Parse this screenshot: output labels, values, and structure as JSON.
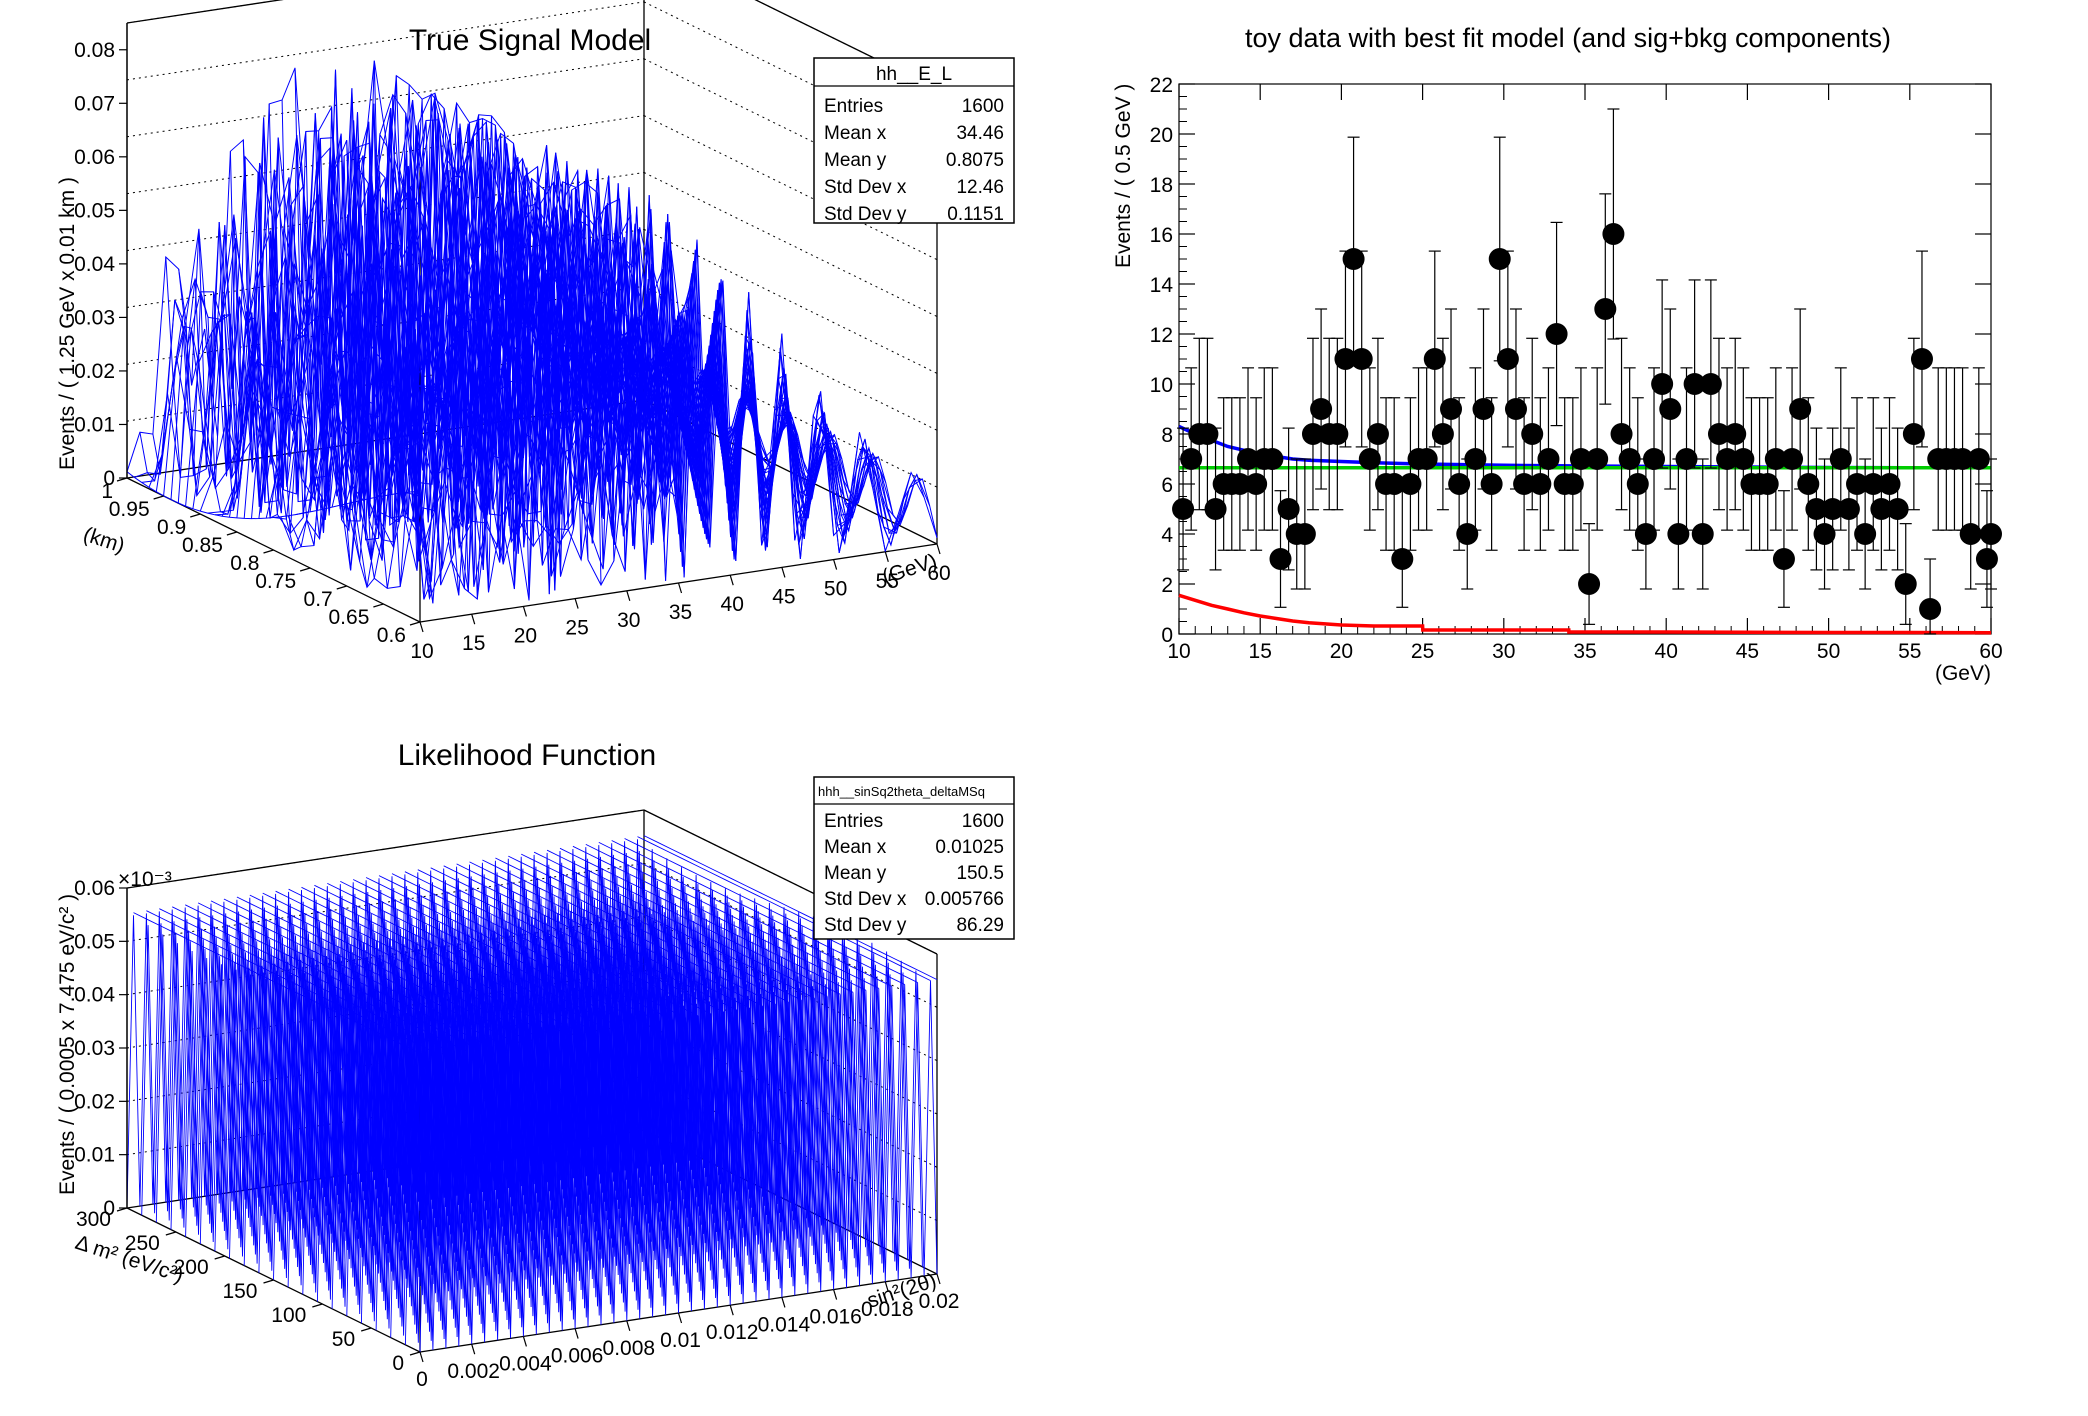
{
  "colors": {
    "mesh": "#0000ff",
    "fit_total": "#0000ff",
    "fit_bkg": "#00cc00",
    "fit_sig": "#ff0000",
    "points": "#000000"
  },
  "chart_data": [
    {
      "id": "true_signal",
      "type": "surface",
      "title": "True Signal Model",
      "xlabel": "(GeV)",
      "ylabel": "(km)",
      "zlabel": "Events / ( 1.25 GeV x 0.01 km )",
      "xlim": [
        10,
        60
      ],
      "ylim": [
        0.6,
        1.0
      ],
      "zlim": [
        0,
        0.085
      ],
      "x_ticks": [
        "10",
        "15",
        "20",
        "25",
        "30",
        "35",
        "40",
        "45",
        "50",
        "55",
        "60"
      ],
      "y_ticks": [
        "0.6",
        "0.65",
        "0.7",
        "0.75",
        "0.8",
        "0.85",
        "0.9",
        "0.95",
        "1"
      ],
      "z_ticks": [
        "0",
        "0.01",
        "0.02",
        "0.03",
        "0.04",
        "0.05",
        "0.06",
        "0.07",
        "0.08"
      ],
      "stats": {
        "name": "hh__E_L",
        "rows": [
          [
            "Entries",
            "1600"
          ],
          [
            "Mean x",
            "34.46"
          ],
          [
            "Mean y",
            "0.8075"
          ],
          [
            "Std Dev x",
            "12.46"
          ],
          [
            "Std Dev y",
            "0.1151"
          ]
        ]
      }
    },
    {
      "id": "toy_fit",
      "type": "scatter",
      "title": "toy data with best fit model (and sig+bkg components)",
      "xlabel": "(GeV)",
      "ylabel": "Events / ( 0.5 GeV )",
      "xlim": [
        10,
        60
      ],
      "ylim": [
        0,
        22
      ],
      "x_ticks": [
        "10",
        "15",
        "20",
        "25",
        "30",
        "35",
        "40",
        "45",
        "50",
        "55",
        "60"
      ],
      "y_ticks": [
        "0",
        "2",
        "4",
        "6",
        "8",
        "10",
        "12",
        "14",
        "16",
        "18",
        "20",
        "22"
      ],
      "points": [
        [
          10.25,
          5
        ],
        [
          10.75,
          7
        ],
        [
          11.25,
          8
        ],
        [
          11.75,
          8
        ],
        [
          12.25,
          5
        ],
        [
          12.75,
          6
        ],
        [
          13.25,
          6
        ],
        [
          13.75,
          6
        ],
        [
          14.25,
          7
        ],
        [
          14.75,
          6
        ],
        [
          15.25,
          7
        ],
        [
          15.75,
          7
        ],
        [
          16.25,
          3
        ],
        [
          16.75,
          5
        ],
        [
          17.25,
          4
        ],
        [
          17.75,
          4
        ],
        [
          18.25,
          8
        ],
        [
          18.75,
          9
        ],
        [
          19.25,
          8
        ],
        [
          19.75,
          8
        ],
        [
          20.25,
          11
        ],
        [
          20.75,
          15
        ],
        [
          21.25,
          11
        ],
        [
          21.75,
          7
        ],
        [
          22.25,
          8
        ],
        [
          22.75,
          6
        ],
        [
          23.25,
          6
        ],
        [
          23.75,
          3
        ],
        [
          24.25,
          6
        ],
        [
          24.75,
          7
        ],
        [
          25.25,
          7
        ],
        [
          25.75,
          11
        ],
        [
          26.25,
          8
        ],
        [
          26.75,
          9
        ],
        [
          27.25,
          6
        ],
        [
          27.75,
          4
        ],
        [
          28.25,
          7
        ],
        [
          28.75,
          9
        ],
        [
          29.25,
          6
        ],
        [
          29.75,
          15
        ],
        [
          30.25,
          11
        ],
        [
          30.75,
          9
        ],
        [
          31.25,
          6
        ],
        [
          31.75,
          8
        ],
        [
          32.25,
          6
        ],
        [
          32.75,
          7
        ],
        [
          33.25,
          12
        ],
        [
          33.75,
          6
        ],
        [
          34.25,
          6
        ],
        [
          34.75,
          7
        ],
        [
          35.25,
          2
        ],
        [
          35.75,
          7
        ],
        [
          36.25,
          13
        ],
        [
          36.75,
          16
        ],
        [
          37.25,
          8
        ],
        [
          37.75,
          7
        ],
        [
          38.25,
          6
        ],
        [
          38.75,
          4
        ],
        [
          39.25,
          7
        ],
        [
          39.75,
          10
        ],
        [
          40.25,
          9
        ],
        [
          40.75,
          4
        ],
        [
          41.25,
          7
        ],
        [
          41.75,
          10
        ],
        [
          42.25,
          4
        ],
        [
          42.75,
          10
        ],
        [
          43.25,
          8
        ],
        [
          43.75,
          7
        ],
        [
          44.25,
          8
        ],
        [
          44.75,
          7
        ],
        [
          45.25,
          6
        ],
        [
          45.75,
          6
        ],
        [
          46.25,
          6
        ],
        [
          46.75,
          7
        ],
        [
          47.25,
          3
        ],
        [
          47.75,
          7
        ],
        [
          48.25,
          9
        ],
        [
          48.75,
          6
        ],
        [
          49.25,
          5
        ],
        [
          49.75,
          4
        ],
        [
          50.25,
          5
        ],
        [
          50.75,
          7
        ],
        [
          51.25,
          5
        ],
        [
          51.75,
          6
        ],
        [
          52.25,
          4
        ],
        [
          52.75,
          6
        ],
        [
          53.25,
          5
        ],
        [
          53.75,
          6
        ],
        [
          54.25,
          5
        ],
        [
          54.75,
          2
        ],
        [
          55.25,
          8
        ],
        [
          55.75,
          11
        ],
        [
          56.25,
          1
        ],
        [
          56.75,
          7
        ],
        [
          57.25,
          7
        ],
        [
          57.75,
          7
        ],
        [
          58.25,
          7
        ],
        [
          58.75,
          4
        ],
        [
          59.25,
          7
        ],
        [
          59.75,
          3
        ],
        [
          60.0,
          4
        ]
      ],
      "series": [
        {
          "name": "sig+bkg",
          "color": "#0000ff",
          "x": [
            10,
            11,
            12,
            13,
            14,
            15,
            16,
            17,
            18,
            20,
            22,
            25,
            30,
            35,
            40,
            45,
            50,
            55,
            60
          ],
          "values": [
            8.3,
            8.0,
            7.75,
            7.5,
            7.35,
            7.2,
            7.1,
            7.0,
            6.95,
            6.9,
            6.85,
            6.8,
            6.75,
            6.72,
            6.7,
            6.68,
            6.66,
            6.65,
            6.65
          ]
        },
        {
          "name": "bkg",
          "color": "#00cc00",
          "x": [
            10,
            60
          ],
          "values": [
            6.65,
            6.65
          ]
        },
        {
          "name": "sig",
          "color": "#ff0000",
          "x": [
            10,
            11,
            12,
            13,
            14,
            15,
            16,
            17,
            18,
            20,
            22,
            25,
            25.01,
            34,
            34.01,
            40,
            45,
            50,
            55,
            60
          ],
          "values": [
            1.55,
            1.35,
            1.15,
            1.0,
            0.85,
            0.72,
            0.62,
            0.52,
            0.45,
            0.36,
            0.32,
            0.32,
            0.16,
            0.16,
            0.08,
            0.08,
            0.07,
            0.06,
            0.06,
            0.05
          ]
        }
      ]
    },
    {
      "id": "likelihood",
      "type": "surface",
      "title": "Likelihood Function",
      "xlabel": "sin²(2θ)",
      "ylabel": "Δ m² (eV/c²)",
      "zlabel": "Events / ( 0.0005 x 7.475 eV/c² )",
      "exponent": "×10⁻³",
      "xlim": [
        0,
        0.02
      ],
      "ylim": [
        0,
        300
      ],
      "zlim": [
        0,
        0.06
      ],
      "x_ticks": [
        "0",
        "0.002",
        "0.004",
        "0.006",
        "0.008",
        "0.01",
        "0.012",
        "0.014",
        "0.016",
        "0.018",
        "0.02"
      ],
      "y_ticks": [
        "0",
        "50",
        "100",
        "150",
        "200",
        "250",
        "300"
      ],
      "z_ticks": [
        "0",
        "0.01",
        "0.02",
        "0.03",
        "0.04",
        "0.05",
        "0.06"
      ],
      "stats": {
        "name": "hhh__sinSq2theta_deltaMSq",
        "rows": [
          [
            "Entries",
            "1600"
          ],
          [
            "Mean x",
            "0.01025"
          ],
          [
            "Mean y",
            "150.5"
          ],
          [
            "Std Dev x",
            "0.005766"
          ],
          [
            "Std Dev y",
            "86.29"
          ]
        ]
      }
    }
  ]
}
